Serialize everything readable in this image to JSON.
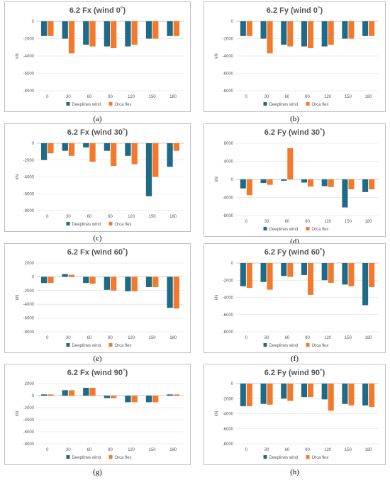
{
  "colors": {
    "deeplines": "#1f6a86",
    "orcaflex": "#f37a2c",
    "frame": "#bfbfbf",
    "grid": "#d9d9d9"
  },
  "legend": [
    "Deeplines wind",
    "Orca flex"
  ],
  "chart_data": [
    {
      "id": "a",
      "label": "(a)",
      "type": "bar",
      "title": "6.2 Fx (wind 0˚)",
      "ylabel": "kN",
      "categories": [
        "0",
        "30",
        "60",
        "90",
        "120",
        "150",
        "180"
      ],
      "yticks": [
        0,
        -2000,
        -4000,
        -6000,
        -8000
      ],
      "ylim": [
        -8000,
        0
      ],
      "series": [
        {
          "name": "Deeplines wind",
          "values": [
            -1700,
            -2000,
            -2700,
            -2900,
            -2900,
            -2000,
            -1700
          ]
        },
        {
          "name": "Orca flex",
          "values": [
            -1700,
            -3700,
            -2900,
            -3100,
            -2700,
            -2000,
            -1700
          ]
        }
      ]
    },
    {
      "id": "b",
      "label": "(b)",
      "type": "bar",
      "title": "6.2 Fy (wind 0˚)",
      "ylabel": "kN",
      "categories": [
        "0",
        "30",
        "60",
        "90",
        "120",
        "150",
        "180"
      ],
      "yticks": [
        0,
        -2000,
        -4000,
        -6000,
        -8000
      ],
      "ylim": [
        -8000,
        0
      ],
      "series": [
        {
          "name": "Deeplines wind",
          "values": [
            -1700,
            -2000,
            -2700,
            -2900,
            -2900,
            -2000,
            -1700
          ]
        },
        {
          "name": "Orca flex",
          "values": [
            -1700,
            -3700,
            -2900,
            -3100,
            -2700,
            -2000,
            -1700
          ]
        }
      ]
    },
    {
      "id": "c",
      "label": "(c)",
      "type": "bar",
      "title": "6.2 Fx (wind 30˚)",
      "ylabel": "kN",
      "categories": [
        "0",
        "30",
        "60",
        "90",
        "120",
        "150",
        "180"
      ],
      "yticks": [
        0,
        -2000,
        -4000,
        -6000,
        -8000
      ],
      "ylim": [
        -8000,
        0
      ],
      "series": [
        {
          "name": "Deeplines wind",
          "values": [
            -2000,
            -900,
            -500,
            -900,
            -1500,
            -6300,
            -2800
          ]
        },
        {
          "name": "Orca flex",
          "values": [
            -1200,
            -1500,
            -2200,
            -2700,
            -2500,
            -4000,
            -900
          ]
        }
      ]
    },
    {
      "id": "d",
      "label": "(d)",
      "type": "bar",
      "title": "6.2 Fy (wind 30˚)",
      "ylabel": "kN",
      "categories": [
        "0",
        "30",
        "60",
        "90",
        "120",
        "150",
        "180"
      ],
      "yticks": [
        8000,
        4000,
        0,
        -4000,
        -8000
      ],
      "ylim": [
        -8000,
        8000
      ],
      "series": [
        {
          "name": "Deeplines wind",
          "values": [
            -2000,
            -800,
            -300,
            -700,
            -1500,
            -6200,
            -2800
          ]
        },
        {
          "name": "Orca flex",
          "values": [
            -3500,
            -1200,
            6900,
            -1600,
            -1700,
            -2200,
            -2200
          ]
        }
      ]
    },
    {
      "id": "e",
      "label": "(e)",
      "type": "bar",
      "title": "6.2 Fx (wind 60˚)",
      "ylabel": "kN",
      "categories": [
        "0",
        "30",
        "60",
        "90",
        "120",
        "150",
        "180"
      ],
      "yticks": [
        2000,
        0,
        -2000,
        -4000,
        -6000,
        -8000
      ],
      "ylim": [
        -8000,
        2000
      ],
      "series": [
        {
          "name": "Deeplines wind",
          "values": [
            -900,
            400,
            -900,
            -1900,
            -2100,
            -1500,
            -4500
          ]
        },
        {
          "name": "Orca flex",
          "values": [
            -900,
            300,
            -1000,
            -2000,
            -2100,
            -1500,
            -4600
          ]
        }
      ]
    },
    {
      "id": "f",
      "label": "(f)",
      "type": "bar",
      "title": "6.2 Fy (wind 60˚)",
      "ylabel": "kN",
      "categories": [
        "0",
        "30",
        "60",
        "90",
        "120",
        "150",
        "180"
      ],
      "yticks": [
        0,
        -2000,
        -4000,
        -6000,
        -8000
      ],
      "ylim": [
        -8000,
        0
      ],
      "series": [
        {
          "name": "Deeplines wind",
          "values": [
            -2700,
            -2200,
            -1500,
            -1400,
            -2000,
            -2500,
            -4900
          ]
        },
        {
          "name": "Orca flex",
          "values": [
            -2900,
            -3100,
            -1600,
            -3700,
            -2300,
            -2700,
            -2800
          ]
        }
      ]
    },
    {
      "id": "g",
      "label": "(g)",
      "type": "bar",
      "title": "6.2 Fx (wind 90˚)",
      "ylabel": "kN",
      "categories": [
        "0",
        "30",
        "60",
        "90",
        "120",
        "150",
        "180"
      ],
      "yticks": [
        2000,
        0,
        -2000,
        -4000,
        -6000,
        -8000
      ],
      "ylim": [
        -8000,
        2000
      ],
      "series": [
        {
          "name": "Deeplines wind",
          "values": [
            200,
            900,
            1300,
            -400,
            -1100,
            -1100,
            200
          ]
        },
        {
          "name": "Orca flex",
          "values": [
            200,
            900,
            1300,
            -400,
            -1100,
            -1100,
            200
          ]
        }
      ]
    },
    {
      "id": "h",
      "label": "(h)",
      "type": "bar",
      "title": "6.2 Fy (wind 90˚)",
      "ylabel": "kN",
      "categories": [
        "0",
        "30",
        "60",
        "90",
        "120",
        "150",
        "180"
      ],
      "yticks": [
        0,
        -2000,
        -4000,
        -6000,
        -8000
      ],
      "ylim": [
        -8000,
        0
      ],
      "series": [
        {
          "name": "Deeplines wind",
          "values": [
            -3000,
            -2700,
            -2000,
            -1800,
            -2100,
            -2700,
            -2900
          ]
        },
        {
          "name": "Orca flex",
          "values": [
            -3000,
            -2800,
            -2300,
            -1800,
            -3600,
            -2900,
            -3100
          ]
        }
      ]
    }
  ]
}
